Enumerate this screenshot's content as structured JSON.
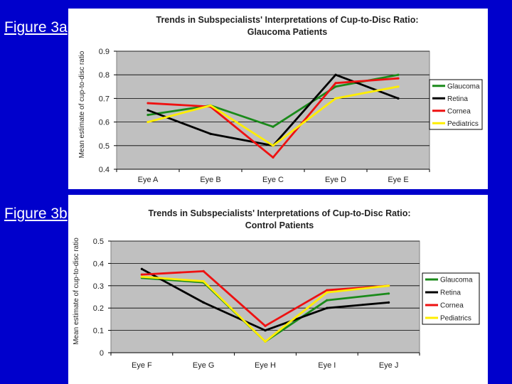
{
  "slide": {
    "label_a": "Figure 3a",
    "label_b": "Figure 3b",
    "background": "#0000cc"
  },
  "chart_data": [
    {
      "type": "line",
      "title": "Trends in Subspecialists' Interpretations of Cup-to-Disc Ratio:",
      "subtitle": "Glaucoma Patients",
      "xlabel": "",
      "ylabel": "Mean estimate of cup-to-disc ratio",
      "categories": [
        "Eye A",
        "Eye B",
        "Eye C",
        "Eye D",
        "Eye E"
      ],
      "ylim": [
        0.4,
        0.9
      ],
      "yticks": [
        "0.4",
        "0.5",
        "0.6",
        "0.7",
        "0.8",
        "0.9"
      ],
      "grid": true,
      "legend_position": "right",
      "series": [
        {
          "name": "Glaucoma",
          "color": "#1a8a1a",
          "values": [
            0.63,
            0.67,
            0.58,
            0.75,
            0.8
          ]
        },
        {
          "name": "Retina",
          "color": "#000000",
          "values": [
            0.65,
            0.55,
            0.5,
            0.8,
            0.7
          ]
        },
        {
          "name": "Cornea",
          "color": "#ee1111",
          "values": [
            0.68,
            0.665,
            0.45,
            0.765,
            0.785
          ]
        },
        {
          "name": "Pediatrics",
          "color": "#ffee00",
          "values": [
            0.6,
            0.67,
            0.5,
            0.7,
            0.75
          ]
        }
      ]
    },
    {
      "type": "line",
      "title": "Trends in Subspecialists' Interpretations of Cup-to-Disc Ratio:",
      "subtitle": "Control Patients",
      "xlabel": "",
      "ylabel": "Mean estimate of cup-to-disc ratio",
      "categories": [
        "Eye F",
        "Eye G",
        "Eye H",
        "Eye I",
        "Eye J"
      ],
      "ylim": [
        0,
        0.5
      ],
      "yticks": [
        "0",
        "0.1",
        "0.2",
        "0.3",
        "0.4",
        "0.5"
      ],
      "grid": true,
      "legend_position": "right",
      "series": [
        {
          "name": "Glaucoma",
          "color": "#1a8a1a",
          "values": [
            0.335,
            0.315,
            0.05,
            0.235,
            0.265
          ]
        },
        {
          "name": "Retina",
          "color": "#000000",
          "values": [
            0.375,
            0.225,
            0.1,
            0.2,
            0.225
          ]
        },
        {
          "name": "Cornea",
          "color": "#ee1111",
          "values": [
            0.35,
            0.365,
            0.12,
            0.28,
            0.3
          ]
        },
        {
          "name": "Pediatrics",
          "color": "#ffee00",
          "values": [
            0.34,
            0.32,
            0.05,
            0.27,
            0.3
          ]
        }
      ]
    }
  ]
}
